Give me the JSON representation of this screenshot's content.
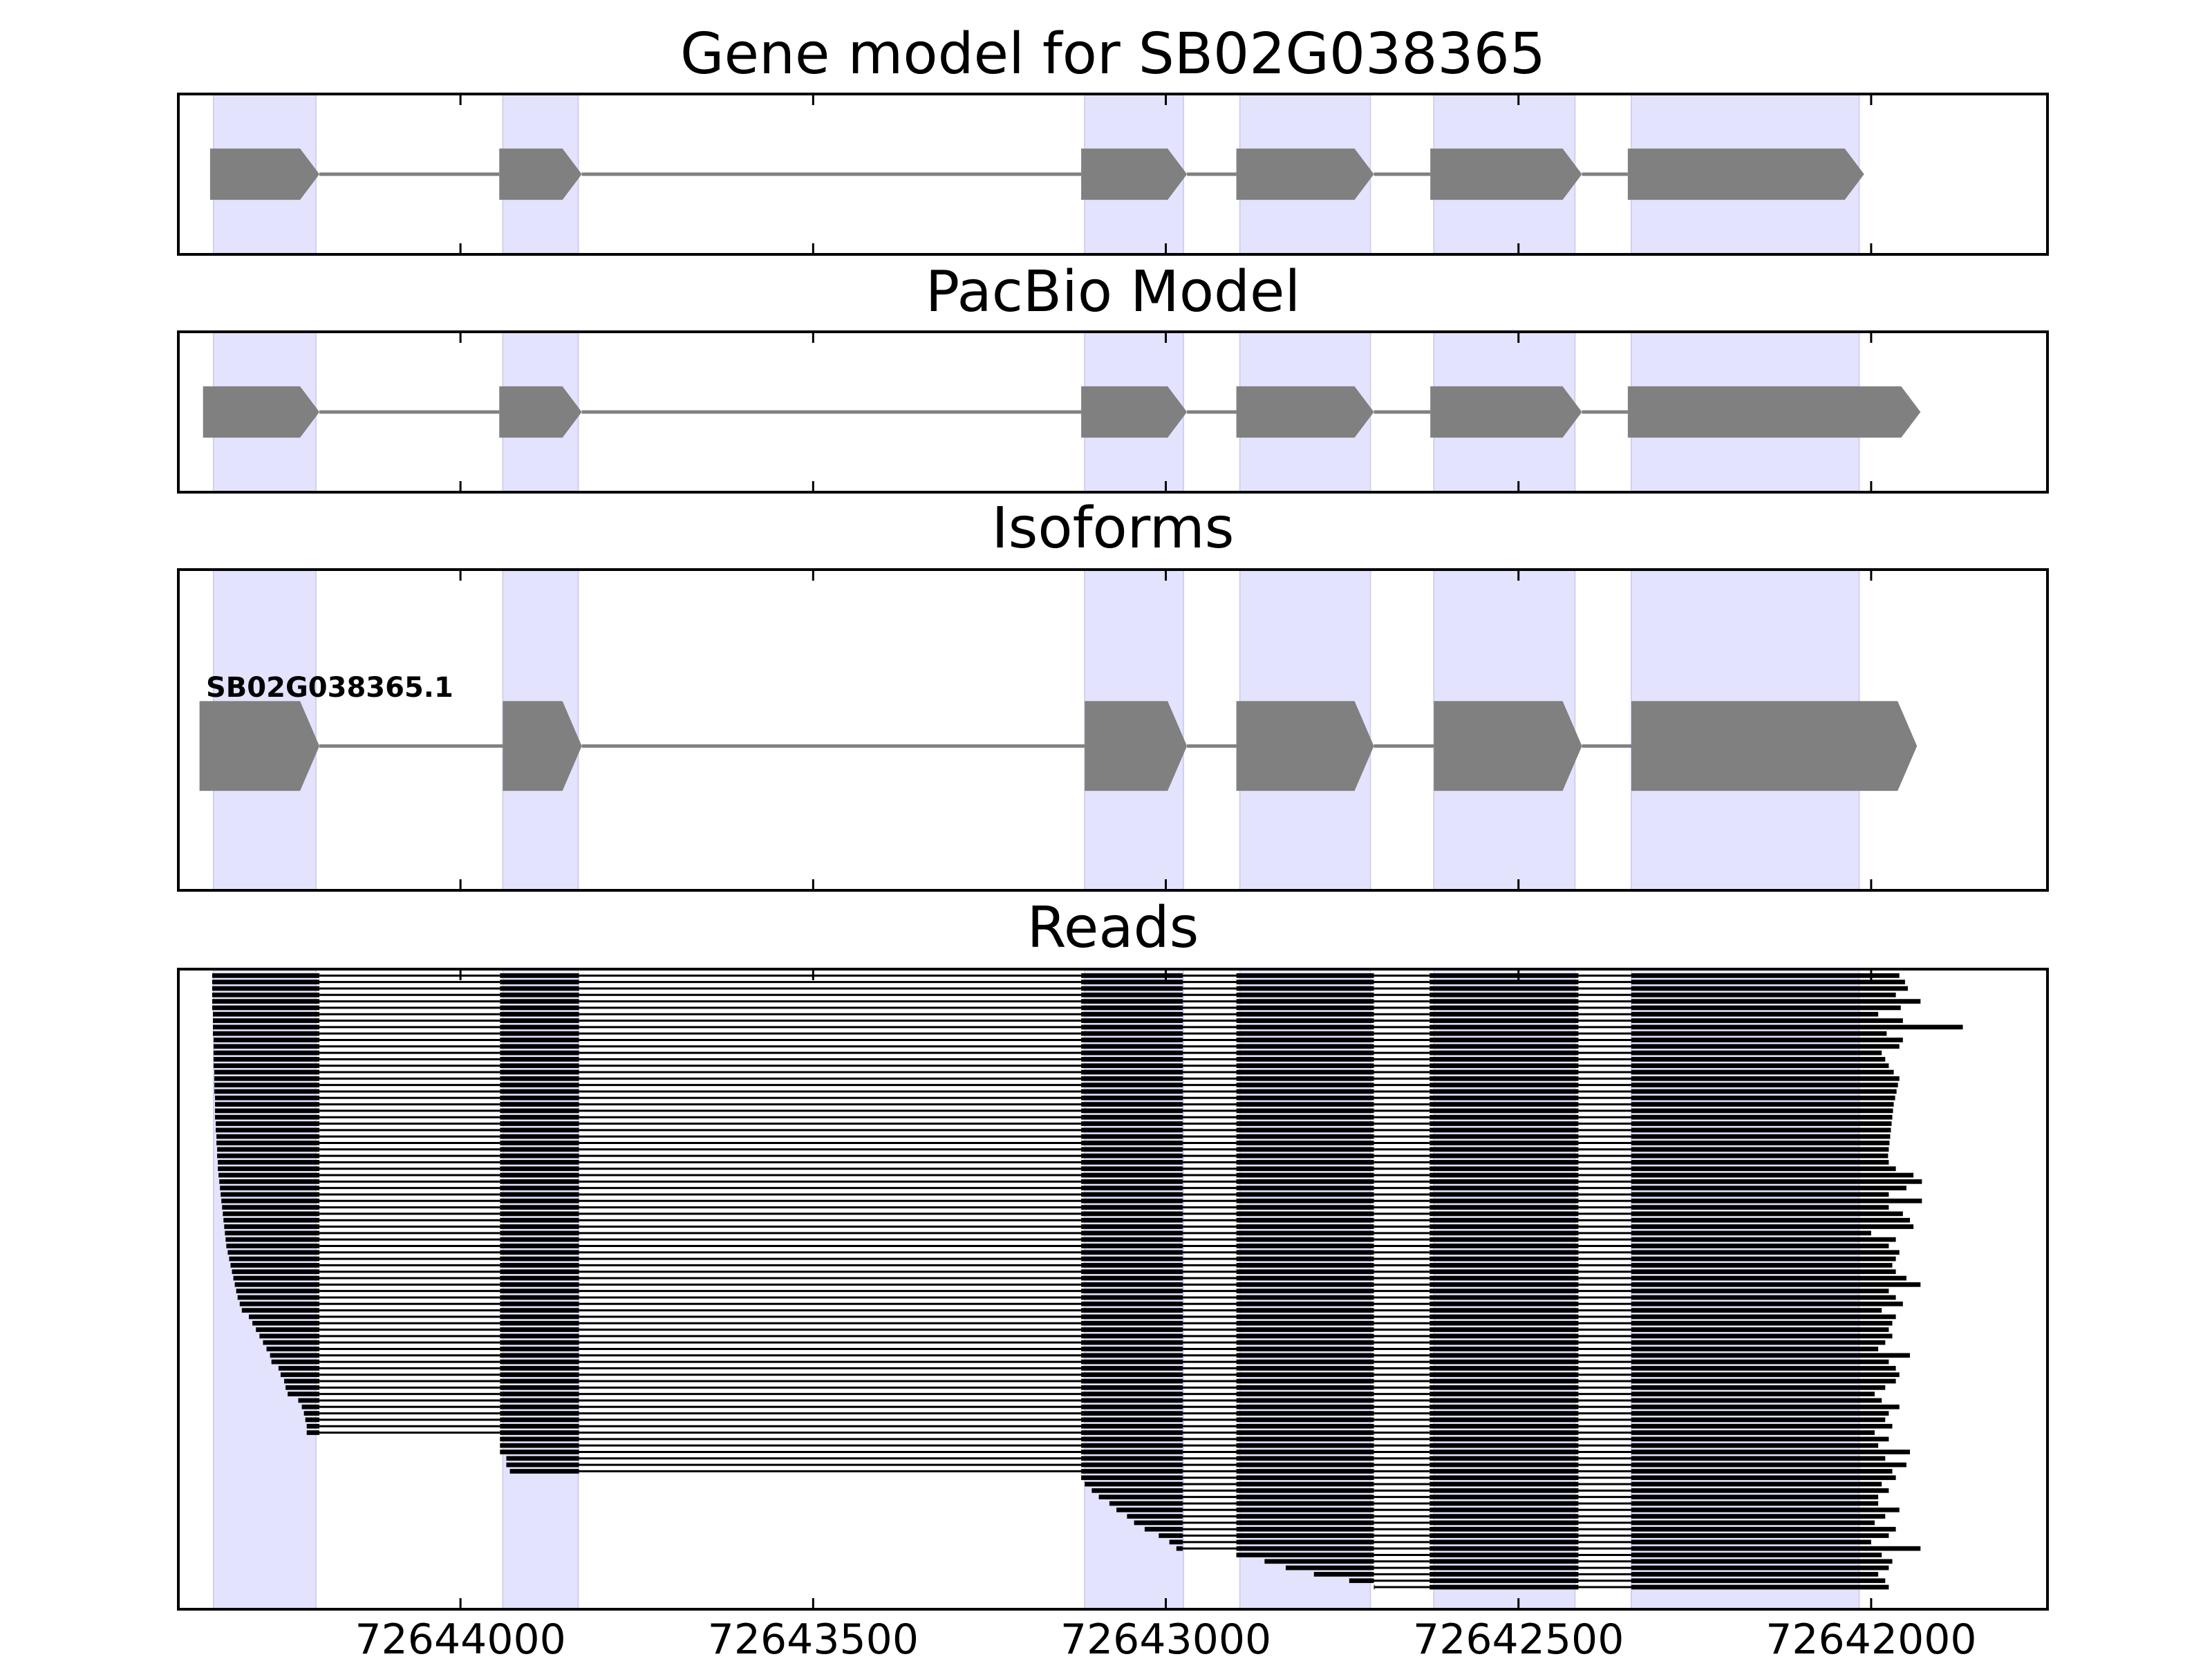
{
  "colors": {
    "exon_highlight": "#e3e3fe",
    "exon_highlight_edge": "#d0d0ef",
    "gene_shape": "#808080",
    "intron_line": "#808080",
    "read_bar": "#000000",
    "axis": "#000000",
    "background": "#ffffff"
  },
  "chart_data": {
    "type": "gene-model tracks",
    "x_axis": {
      "orientation": "reversed",
      "range": [
        72644400,
        72641750
      ],
      "ticks": [
        72644000,
        72643500,
        72643000,
        72642500,
        72642000
      ],
      "tick_labels": [
        "72644000",
        "72643500",
        "72643000",
        "72642500",
        "72642000"
      ]
    },
    "exon_highlights": [
      [
        72644350,
        72644205
      ],
      [
        72643940,
        72643833
      ],
      [
        72643115,
        72642975
      ],
      [
        72642895,
        72642710
      ],
      [
        72642620,
        72642420
      ],
      [
        72642340,
        72642017
      ]
    ],
    "panels": [
      {
        "title": "Gene model for SB02G038365",
        "height_weight": 0.5,
        "lane": 0.5,
        "thickness": 0.32,
        "exons": [
          [
            72644355,
            72644200
          ],
          [
            72643945,
            72643828
          ],
          [
            72643120,
            72642970
          ],
          [
            72642900,
            72642705
          ],
          [
            72642625,
            72642410
          ],
          [
            72642345,
            72642010
          ]
        ]
      },
      {
        "title": "PacBio Model",
        "height_weight": 0.5,
        "lane": 0.5,
        "thickness": 0.32,
        "exons": [
          [
            72644365,
            72644200
          ],
          [
            72643945,
            72643828
          ],
          [
            72643120,
            72642970
          ],
          [
            72642900,
            72642705
          ],
          [
            72642625,
            72642410
          ],
          [
            72642345,
            72641930
          ]
        ]
      },
      {
        "title": "Isoforms",
        "height_weight": 1.0,
        "lane": 0.55,
        "thickness": 0.28,
        "isoform_label": "SB02G038365.1",
        "exons": [
          [
            72644370,
            72644200
          ],
          [
            72643940,
            72643828
          ],
          [
            72643115,
            72642970
          ],
          [
            72642900,
            72642705
          ],
          [
            72642620,
            72642410
          ],
          [
            72642340,
            72641935
          ]
        ]
      }
    ],
    "reads": {
      "title": "Reads",
      "count": 96,
      "exons": [
        [
          72644352,
          72644200
        ],
        [
          72643944,
          72643832
        ],
        [
          72643120,
          72642976
        ],
        [
          72642900,
          72642705
        ],
        [
          72642626,
          72642415
        ],
        [
          72642340,
          72641952
        ]
      ],
      "first_exon_start": [
        72644352,
        72644352,
        72644352,
        72644352,
        72644352,
        72644352,
        72644351,
        72644351,
        72644351,
        72644351,
        72644350,
        72644350,
        72644350,
        72644350,
        72644350,
        72644349,
        72644349,
        72644349,
        72644349,
        72644348,
        72644348,
        72644348,
        72644348,
        72644347,
        72644347,
        72644346,
        72644346,
        72644345,
        72644345,
        72644344,
        72644344,
        72644343,
        72644342,
        72644341,
        72644340,
        72644339,
        72644338,
        72644337,
        72644336,
        72644335,
        72644334,
        72644333,
        72644332,
        72644330,
        72644328,
        72644326,
        72644324,
        72644322,
        72644320,
        72644318,
        72644316,
        72644313,
        72644310,
        72644300,
        72644295,
        72644290,
        72644285,
        72644280,
        72644275,
        72644270,
        72644268,
        72644258,
        72644255,
        72644250,
        72644248,
        72644245,
        72644230,
        72644225,
        72644222,
        72644220,
        72644218,
        72644218
      ],
      "missing_first_exon_start": [
        72643944,
        72643944,
        72643944,
        72643935,
        72643935,
        72643930
      ],
      "late_start": [
        72643120,
        72643115,
        72643105,
        72643095,
        72643080,
        72643070,
        72643055,
        72643045,
        72643030,
        72643010,
        72642995,
        72642985
      ],
      "late_start_second": [
        72642900,
        72642860,
        72642830,
        72642790,
        72642740,
        72642705
      ],
      "ends": [
        72641960,
        72641952,
        72641948,
        72641965,
        72641930,
        72641958,
        72641990,
        72641955,
        72641870,
        72641978,
        72641955,
        72641960,
        72641985,
        72641980,
        72641975,
        72641968,
        72641960,
        72641962,
        72641964,
        72641966,
        72641968,
        72641969,
        72641970,
        72641971,
        72641972,
        72641973,
        72641974,
        72641975,
        72641976,
        72641975,
        72641965,
        72641940,
        72641928,
        72641950,
        72641975,
        72641928,
        72641975,
        72641955,
        72641945,
        72641940,
        72642000,
        72641965,
        72641975,
        72641960,
        72641965,
        72641970,
        72641965,
        72641950,
        72641930,
        72641975,
        72641965,
        72641955,
        72641985,
        72641965,
        72641970,
        72641975,
        72641970,
        72641980,
        72641990,
        72641945,
        72641975,
        72641965,
        72641960,
        72641965,
        72641980,
        72641995,
        72641985,
        72641960,
        72641975,
        72641980,
        72641970,
        72641995,
        72641975,
        72641990,
        72641945,
        72641980,
        72641950,
        72641970,
        72641965,
        72641985,
        72641975,
        72641990,
        72641990,
        72641960,
        72641980,
        72641995,
        72641965,
        72641975,
        72642000,
        72641930,
        72641985,
        72641970,
        72641975,
        72641990,
        72641980,
        72641975
      ]
    }
  }
}
